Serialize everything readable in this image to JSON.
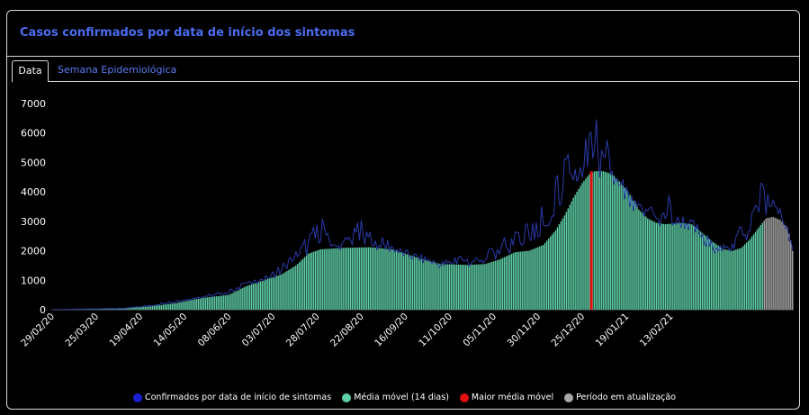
{
  "card": {
    "title": "Casos confirmados por data de início dos sintomas"
  },
  "tabs": [
    {
      "label": "Data",
      "active": true
    },
    {
      "label": "Semana Epidemiológica",
      "active": false
    }
  ],
  "colors": {
    "confirmed": "#1a1fd6",
    "confirmed_line": "#2a3aa8",
    "moving_avg": "#5fd0a8",
    "max_avg": "#e01010",
    "updating": "#a8a8a8",
    "title": "#4a6cf0"
  },
  "legend": [
    {
      "label": "Confirmados por data de início de sintomas",
      "color": "#1a1fd6"
    },
    {
      "label": "Média móvel (14 dias)",
      "color": "#5fd0a8"
    },
    {
      "label": "Maior média móvel",
      "color": "#e01010"
    },
    {
      "label": "Período em atualização",
      "color": "#a8a8a8"
    }
  ],
  "chart_data": {
    "type": "bar",
    "start_date": "29/02/20",
    "ylim": [
      0,
      7000
    ],
    "yticks": [
      0,
      1000,
      2000,
      3000,
      4000,
      5000,
      6000,
      7000
    ],
    "xtick_labels": [
      "29/02/20",
      "25/03/20",
      "19/04/20",
      "14/05/20",
      "08/06/20",
      "03/07/20",
      "28/07/20",
      "22/08/20",
      "16/09/20",
      "11/10/20",
      "05/11/20",
      "30/11/20",
      "25/12/20",
      "19/01/21",
      "13/02/21"
    ],
    "moving_avg_keypoints": [
      [
        0,
        0
      ],
      [
        20,
        15
      ],
      [
        40,
        50
      ],
      [
        55,
        110
      ],
      [
        70,
        220
      ],
      [
        85,
        400
      ],
      [
        100,
        500
      ],
      [
        110,
        800
      ],
      [
        120,
        1000
      ],
      [
        130,
        1200
      ],
      [
        138,
        1500
      ],
      [
        145,
        1900
      ],
      [
        152,
        2050
      ],
      [
        165,
        2100
      ],
      [
        180,
        2120
      ],
      [
        192,
        2050
      ],
      [
        200,
        1900
      ],
      [
        210,
        1700
      ],
      [
        220,
        1550
      ],
      [
        235,
        1520
      ],
      [
        245,
        1550
      ],
      [
        253,
        1700
      ],
      [
        262,
        1950
      ],
      [
        270,
        2000
      ],
      [
        278,
        2200
      ],
      [
        285,
        2700
      ],
      [
        290,
        3200
      ],
      [
        295,
        3800
      ],
      [
        300,
        4300
      ],
      [
        304,
        4600
      ],
      [
        307,
        4700
      ],
      [
        312,
        4700
      ],
      [
        317,
        4600
      ],
      [
        322,
        4300
      ],
      [
        327,
        3900
      ],
      [
        332,
        3400
      ],
      [
        337,
        3100
      ],
      [
        342,
        2950
      ],
      [
        347,
        2900
      ],
      [
        355,
        2950
      ],
      [
        362,
        2900
      ],
      [
        368,
        2600
      ],
      [
        374,
        2300
      ],
      [
        380,
        2050
      ],
      [
        385,
        2000
      ],
      [
        390,
        2100
      ],
      [
        395,
        2400
      ],
      [
        400,
        2800
      ],
      [
        404,
        3100
      ],
      [
        408,
        3150
      ],
      [
        412,
        3050
      ],
      [
        416,
        2800
      ],
      [
        418,
        2350
      ],
      [
        419,
        2000
      ]
    ],
    "confirmed_keypoints": [
      [
        0,
        0
      ],
      [
        25,
        30
      ],
      [
        40,
        40
      ],
      [
        55,
        150
      ],
      [
        66,
        300
      ],
      [
        80,
        400
      ],
      [
        98,
        600
      ],
      [
        108,
        900
      ],
      [
        122,
        1100
      ],
      [
        135,
        1700
      ],
      [
        145,
        2400
      ],
      [
        152,
        3050
      ],
      [
        160,
        2100
      ],
      [
        170,
        2500
      ],
      [
        176,
        3050
      ],
      [
        182,
        2300
      ],
      [
        190,
        2250
      ],
      [
        198,
        1900
      ],
      [
        205,
        1800
      ],
      [
        212,
        1700
      ],
      [
        220,
        1500
      ],
      [
        230,
        1800
      ],
      [
        240,
        1650
      ],
      [
        250,
        2000
      ],
      [
        256,
        2300
      ],
      [
        262,
        2600
      ],
      [
        268,
        2900
      ],
      [
        274,
        3100
      ],
      [
        280,
        4000
      ],
      [
        285,
        4200
      ],
      [
        290,
        5400
      ],
      [
        294,
        4700
      ],
      [
        298,
        4900
      ],
      [
        303,
        5600
      ],
      [
        307,
        6600
      ],
      [
        310,
        5000
      ],
      [
        314,
        5400
      ],
      [
        318,
        4400
      ],
      [
        322,
        4000
      ],
      [
        326,
        3700
      ],
      [
        330,
        3400
      ],
      [
        335,
        3300
      ],
      [
        340,
        3500
      ],
      [
        344,
        2800
      ],
      [
        348,
        3900
      ],
      [
        352,
        3000
      ],
      [
        358,
        3000
      ],
      [
        364,
        2700
      ],
      [
        370,
        2200
      ],
      [
        376,
        2100
      ],
      [
        382,
        2000
      ],
      [
        388,
        2700
      ],
      [
        394,
        3000
      ],
      [
        398,
        3500
      ],
      [
        402,
        4300
      ],
      [
        406,
        3600
      ],
      [
        410,
        3700
      ],
      [
        414,
        3000
      ],
      [
        418,
        2400
      ],
      [
        419,
        2000
      ]
    ],
    "max_moving_avg_index": 305,
    "max_moving_avg_value": 4700,
    "updating_from_index": 403,
    "total_days": 420
  }
}
